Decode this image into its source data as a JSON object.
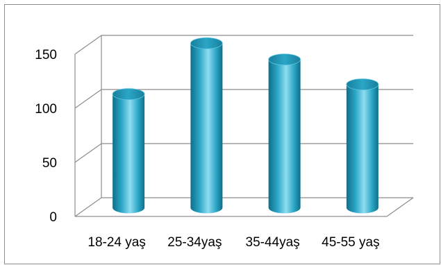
{
  "chart_data": {
    "type": "bar",
    "title": "",
    "xlabel": "",
    "ylabel": "",
    "categories": [
      "18-24 yaş",
      "25-34yaş",
      "35-44yaş",
      "45-55 yaş"
    ],
    "values": [
      105,
      152,
      137,
      114
    ],
    "ylim": [
      0,
      150
    ],
    "yticks": [
      0,
      50,
      100,
      150
    ],
    "grid": true,
    "legend": "none",
    "style": "3d-cylinder",
    "colors": {
      "bar_main": "#2ba6c6",
      "bar_light": "#8fdcf0",
      "bar_dark": "#0f6f8a",
      "bar_top": "#1a89a8",
      "axis": "#7f7f7f",
      "grid": "#8c8c8c",
      "frame": "#8c8c8c"
    }
  }
}
